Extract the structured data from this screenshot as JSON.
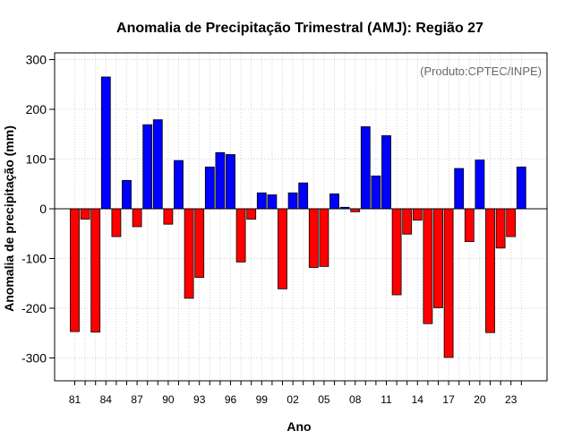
{
  "chart_data": {
    "type": "bar",
    "title": "Anomalia de Precipitação Trimestral (AMJ): Região 27",
    "xlabel": "Ano",
    "ylabel": "Anomalia de precipitação (mm)",
    "credit": "(Produto:CPTEC/INPE)",
    "ylim": [
      -350,
      320
    ],
    "yticks": [
      -300,
      -200,
      -100,
      0,
      100,
      200,
      300
    ],
    "grid": true,
    "years": [
      "1981",
      "1982",
      "1983",
      "1984",
      "1985",
      "1986",
      "1987",
      "1988",
      "1989",
      "1990",
      "1991",
      "1992",
      "1993",
      "1994",
      "1995",
      "1996",
      "1997",
      "1998",
      "1999",
      "2000",
      "2001",
      "2002",
      "2003",
      "2004",
      "2005",
      "2006",
      "2007",
      "2008",
      "2009",
      "2010",
      "2011",
      "2012",
      "2013",
      "2014",
      "2015",
      "2016",
      "2017",
      "2018",
      "2019",
      "2020",
      "2021",
      "2022",
      "2023",
      "2024"
    ],
    "x_tick_labels": [
      "81",
      "84",
      "87",
      "90",
      "93",
      "96",
      "99",
      "02",
      "05",
      "08",
      "11",
      "14",
      "17",
      "20",
      "23"
    ],
    "values": [
      -247,
      -21,
      -248,
      265,
      -56,
      57,
      -36,
      169,
      179,
      -31,
      97,
      -180,
      -138,
      84,
      113,
      109,
      -107,
      -21,
      32,
      28,
      -161,
      32,
      52,
      -118,
      -116,
      30,
      3,
      -6,
      165,
      66,
      147,
      -173,
      -51,
      -23,
      -231,
      -199,
      -299,
      81,
      -66,
      98,
      -249,
      -79,
      -56,
      84
    ],
    "colors": {
      "positive": "#0000ff",
      "negative": "#ff0000",
      "frame": "#000000",
      "grid": "#d3d3d3"
    }
  }
}
